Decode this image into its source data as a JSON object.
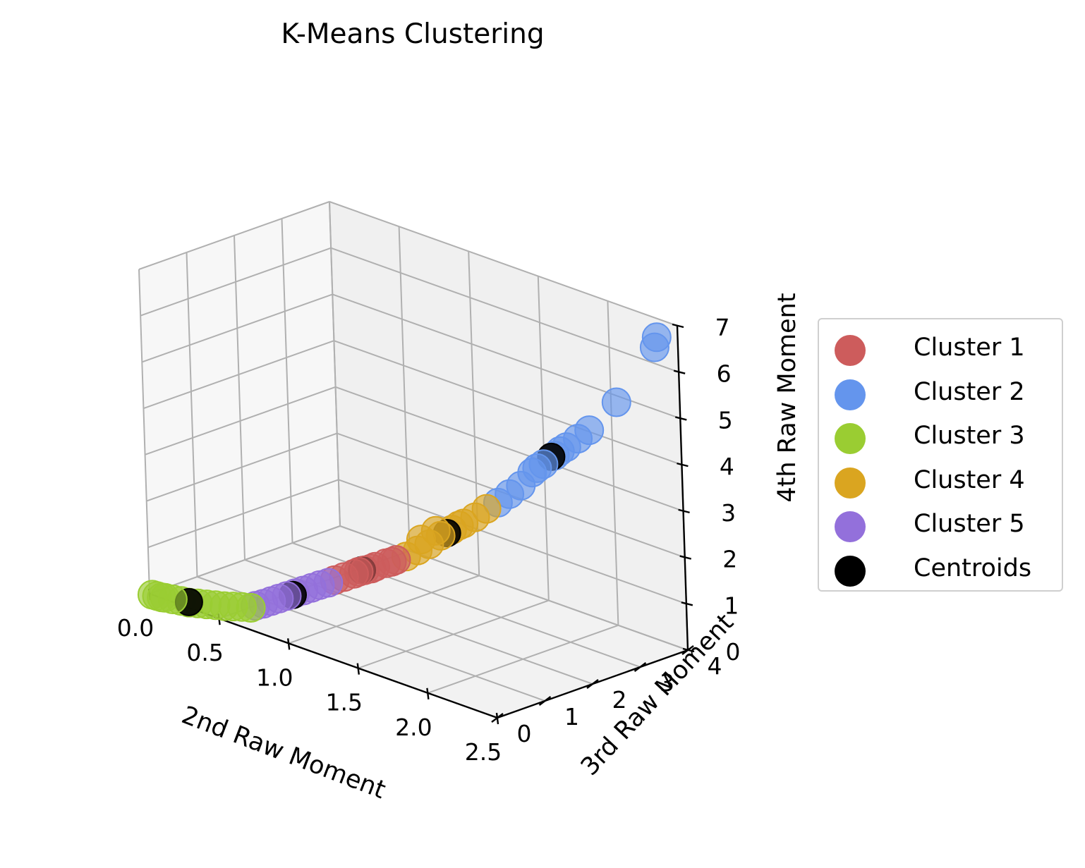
{
  "chart_data": {
    "type": "scatter",
    "title": "K-Means Clustering",
    "xlabel": "2nd Raw Moment",
    "ylabel": "3rd Raw Moment",
    "zlabel": "4th Raw Moment",
    "xlim": [
      0,
      2.5
    ],
    "ylim": [
      0,
      4
    ],
    "zlim": [
      0,
      7
    ],
    "x_ticks": [
      "0.0",
      "0.5",
      "1.0",
      "1.5",
      "2.0",
      "2.5"
    ],
    "y_ticks": [
      "0",
      "1",
      "2",
      "3",
      "4"
    ],
    "z_ticks": [
      "0",
      "1",
      "2",
      "3",
      "4",
      "5",
      "6",
      "7"
    ],
    "grid": true,
    "legend_position": "right",
    "series": [
      {
        "name": "Cluster 1",
        "color": "#cd5c5c",
        "points": [
          [
            1.05,
            1.05,
            1.1
          ],
          [
            1.1,
            1.12,
            1.2
          ],
          [
            1.15,
            1.2,
            1.3
          ],
          [
            1.2,
            1.28,
            1.4
          ],
          [
            1.25,
            1.36,
            1.5
          ],
          [
            1.3,
            1.43,
            1.6
          ],
          [
            1.0,
            1.0,
            1.0
          ],
          [
            1.18,
            1.25,
            1.35
          ],
          [
            1.28,
            1.4,
            1.55
          ],
          [
            1.12,
            1.16,
            1.25
          ]
        ]
      },
      {
        "name": "Cluster 2",
        "color": "#6495ed",
        "points": [
          [
            1.75,
            2.3,
            3.0
          ],
          [
            1.8,
            2.4,
            3.2
          ],
          [
            1.85,
            2.5,
            3.4
          ],
          [
            1.9,
            2.6,
            3.7
          ],
          [
            1.95,
            2.7,
            3.9
          ],
          [
            2.0,
            2.8,
            4.1
          ],
          [
            2.05,
            2.9,
            4.3
          ],
          [
            2.1,
            3.0,
            4.5
          ],
          [
            2.15,
            3.1,
            4.7
          ],
          [
            2.25,
            3.4,
            5.3
          ],
          [
            2.4,
            3.8,
            6.5
          ],
          [
            2.4,
            3.85,
            6.7
          ],
          [
            2.02,
            2.85,
            4.2
          ],
          [
            1.92,
            2.65,
            3.8
          ]
        ]
      },
      {
        "name": "Cluster 3",
        "color": "#9acd32",
        "points": [
          [
            0.02,
            0.0,
            0.0
          ],
          [
            0.05,
            0.01,
            0.0
          ],
          [
            0.08,
            0.02,
            0.0
          ],
          [
            0.1,
            0.03,
            0.01
          ],
          [
            0.15,
            0.05,
            0.02
          ],
          [
            0.2,
            0.08,
            0.03
          ],
          [
            0.25,
            0.1,
            0.04
          ],
          [
            0.3,
            0.14,
            0.06
          ],
          [
            0.35,
            0.18,
            0.08
          ],
          [
            0.4,
            0.22,
            0.1
          ],
          [
            0.45,
            0.26,
            0.12
          ],
          [
            0.5,
            0.3,
            0.15
          ],
          [
            0.55,
            0.34,
            0.18
          ],
          [
            0.6,
            0.38,
            0.2
          ]
        ]
      },
      {
        "name": "Cluster 4",
        "color": "#daa520",
        "points": [
          [
            1.35,
            1.5,
            1.7
          ],
          [
            1.4,
            1.6,
            1.85
          ],
          [
            1.45,
            1.7,
            2.0
          ],
          [
            1.5,
            1.8,
            2.2
          ],
          [
            1.55,
            1.9,
            2.35
          ],
          [
            1.6,
            2.0,
            2.5
          ],
          [
            1.65,
            2.1,
            2.65
          ],
          [
            1.7,
            2.2,
            2.85
          ],
          [
            1.42,
            1.62,
            2.1
          ],
          [
            1.48,
            1.76,
            2.3
          ],
          [
            1.58,
            1.96,
            2.45
          ]
        ]
      },
      {
        "name": "Cluster 5",
        "color": "#9370db",
        "points": [
          [
            0.62,
            0.42,
            0.25
          ],
          [
            0.66,
            0.47,
            0.32
          ],
          [
            0.7,
            0.52,
            0.4
          ],
          [
            0.74,
            0.57,
            0.48
          ],
          [
            0.78,
            0.62,
            0.56
          ],
          [
            0.82,
            0.68,
            0.64
          ],
          [
            0.86,
            0.74,
            0.72
          ],
          [
            0.9,
            0.8,
            0.8
          ],
          [
            0.94,
            0.86,
            0.88
          ],
          [
            0.98,
            0.92,
            0.95
          ]
        ]
      },
      {
        "name": "Centroids",
        "color": "#000000",
        "points": [
          [
            1.13,
            1.2,
            1.28
          ],
          [
            1.98,
            2.78,
            4.06
          ],
          [
            0.25,
            0.1,
            0.05
          ],
          [
            1.53,
            1.85,
            2.27
          ],
          [
            0.81,
            0.66,
            0.6
          ]
        ]
      }
    ]
  }
}
